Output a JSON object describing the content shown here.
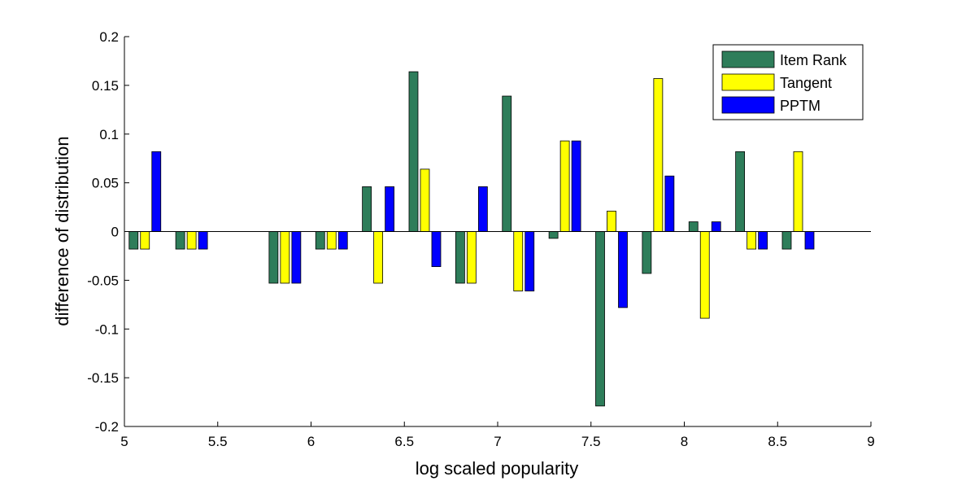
{
  "chart_data": {
    "type": "bar",
    "title": "",
    "xlabel": "log scaled popularity",
    "ylabel": "difference of distribution",
    "xlim": [
      5,
      9
    ],
    "ylim": [
      -0.2,
      0.2
    ],
    "x_ticks": [
      "5",
      "5.5",
      "6",
      "6.5",
      "7",
      "7.5",
      "8",
      "8.5",
      "9"
    ],
    "y_ticks": [
      "-0.2",
      "-0.15",
      "-0.1",
      "-0.05",
      "0",
      "0.05",
      "0.1",
      "0.15",
      "0.2"
    ],
    "legend_position": "top-right",
    "grid": false,
    "x": [
      5.11,
      5.36,
      5.86,
      6.11,
      6.36,
      6.61,
      6.86,
      7.11,
      7.36,
      7.61,
      7.86,
      8.11,
      8.36,
      8.61
    ],
    "series": [
      {
        "name": "Item Rank",
        "color": "#2e7d5a",
        "values": [
          -0.018,
          -0.018,
          -0.053,
          -0.018,
          0.046,
          0.164,
          -0.053,
          0.139,
          -0.007,
          -0.179,
          -0.043,
          0.01,
          0.082,
          -0.018
        ]
      },
      {
        "name": "Tangent",
        "color": "#ffff00",
        "values": [
          -0.018,
          -0.018,
          -0.053,
          -0.018,
          -0.053,
          0.064,
          -0.053,
          -0.061,
          0.093,
          0.021,
          0.157,
          -0.089,
          -0.018,
          0.082
        ]
      },
      {
        "name": "PPTM",
        "color": "#0000ff",
        "values": [
          0.082,
          -0.018,
          -0.053,
          -0.018,
          0.046,
          -0.036,
          0.046,
          -0.061,
          0.093,
          -0.078,
          0.057,
          0.01,
          -0.018,
          -0.018
        ]
      }
    ]
  }
}
